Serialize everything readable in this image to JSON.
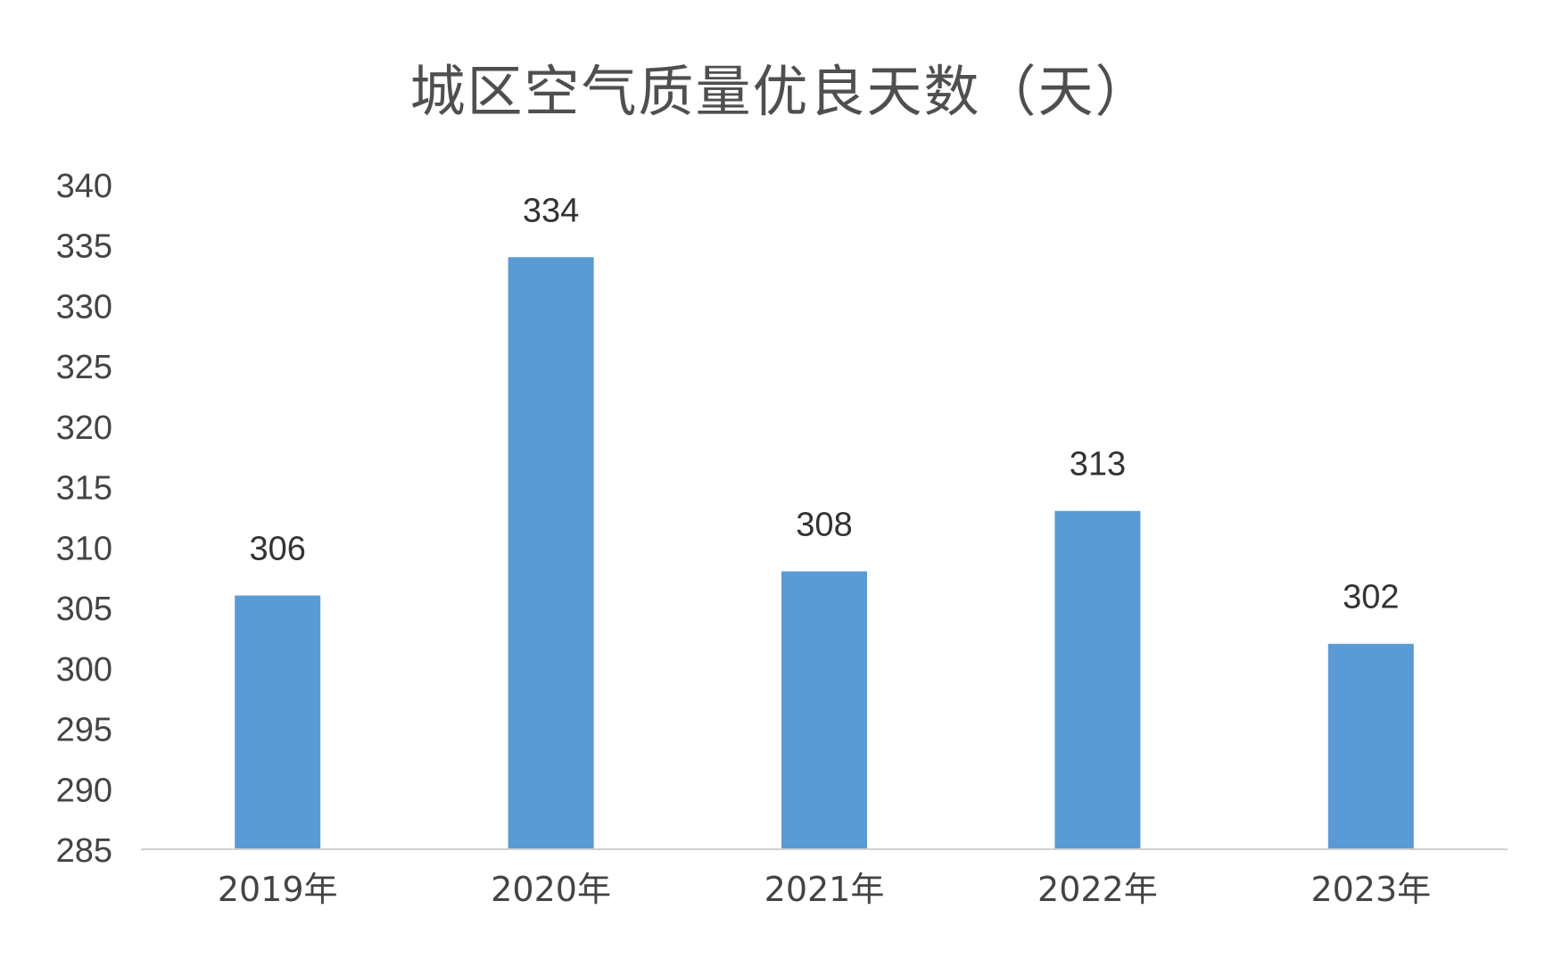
{
  "chart_data": {
    "type": "bar",
    "title": "城区空气质量优良天数（天）",
    "categories": [
      "2019年",
      "2020年",
      "2021年",
      "2022年",
      "2023年"
    ],
    "values": [
      306,
      334,
      308,
      313,
      302
    ],
    "data_labels": [
      "306",
      "334",
      "308",
      "313",
      "302"
    ],
    "ylim": [
      285,
      340
    ],
    "ytick_step": 5,
    "yticks": [
      "285",
      "290",
      "295",
      "300",
      "305",
      "310",
      "315",
      "320",
      "325",
      "330",
      "335",
      "340"
    ],
    "xlabel": "",
    "ylabel": "",
    "grid": false,
    "legend": "none",
    "colors": {
      "bar": "#5b9bd5",
      "axis": "#d0d0d0",
      "text": "#444444"
    }
  }
}
